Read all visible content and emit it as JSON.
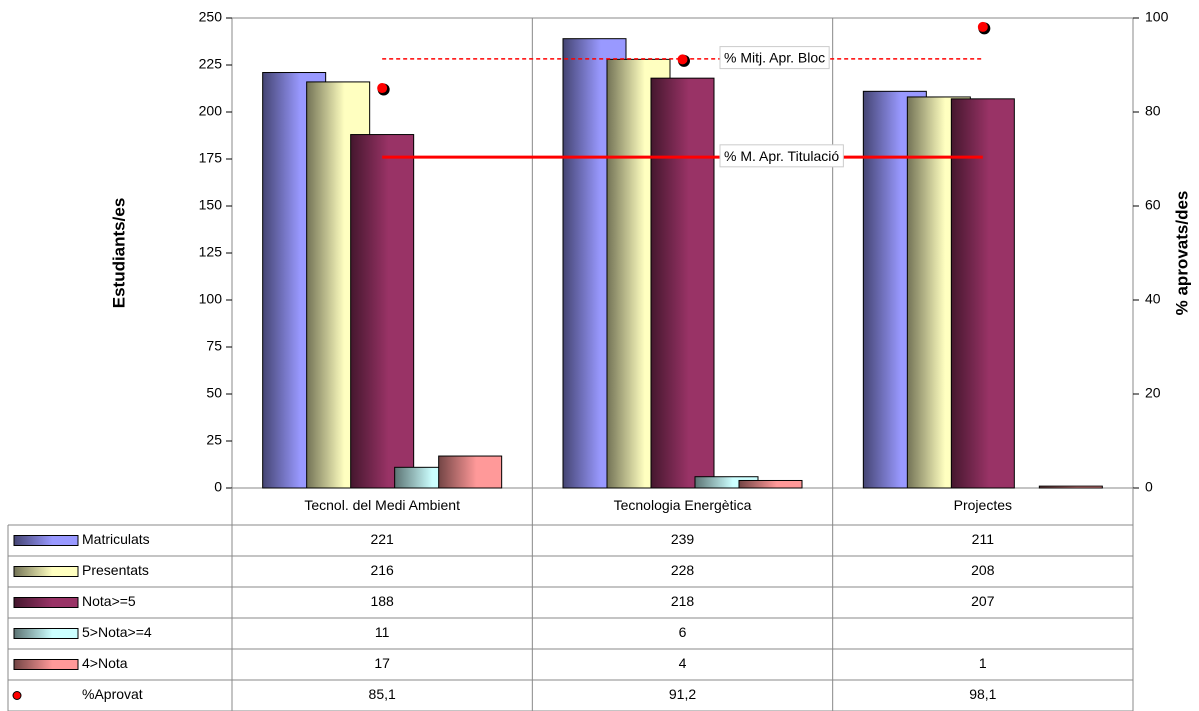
{
  "chart_data": {
    "type": "bar",
    "ylabel": "Estudiants/es",
    "y2label": "% aprovats/des",
    "categories": [
      "Tecnol. del Medi Ambient",
      "Tecnologia Energètica",
      "Projectes"
    ],
    "series": [
      {
        "name": "Matriculats",
        "color": "#9999ff",
        "values": [
          221,
          239,
          211
        ]
      },
      {
        "name": "Presentats",
        "color": "#ffffc0",
        "values": [
          216,
          228,
          208
        ]
      },
      {
        "name": "Nota>=5",
        "color": "#993366",
        "values": [
          188,
          218,
          207
        ]
      },
      {
        "name": "5>Nota>=4",
        "color": "#ccffff",
        "values": [
          11,
          6,
          null
        ]
      },
      {
        "name": "4>Nota",
        "color": "#ff9999",
        "values": [
          17,
          4,
          1
        ]
      },
      {
        "name": "%Aprovat",
        "color": "#ff0000",
        "type": "scatter",
        "axis": "y2",
        "values": [
          85.1,
          91.2,
          98.1
        ],
        "value_labels": [
          "85,1",
          "91,2",
          "98,1"
        ]
      }
    ],
    "reference_lines": [
      {
        "label": "% Mitj. Apr. Bloc",
        "value": 91.3,
        "color": "#ff0000",
        "style": "dashed",
        "axis": "y2"
      },
      {
        "label": "% M. Apr. Titulació",
        "value": 70.4,
        "color": "#ff0000",
        "style": "solid",
        "axis": "y2"
      }
    ],
    "ylim": [
      0,
      250
    ],
    "yticks": [
      0,
      25,
      50,
      75,
      100,
      125,
      150,
      175,
      200,
      225,
      250
    ],
    "y2lim": [
      0,
      100
    ],
    "y2ticks": [
      0,
      20,
      40,
      60,
      80,
      100
    ]
  }
}
